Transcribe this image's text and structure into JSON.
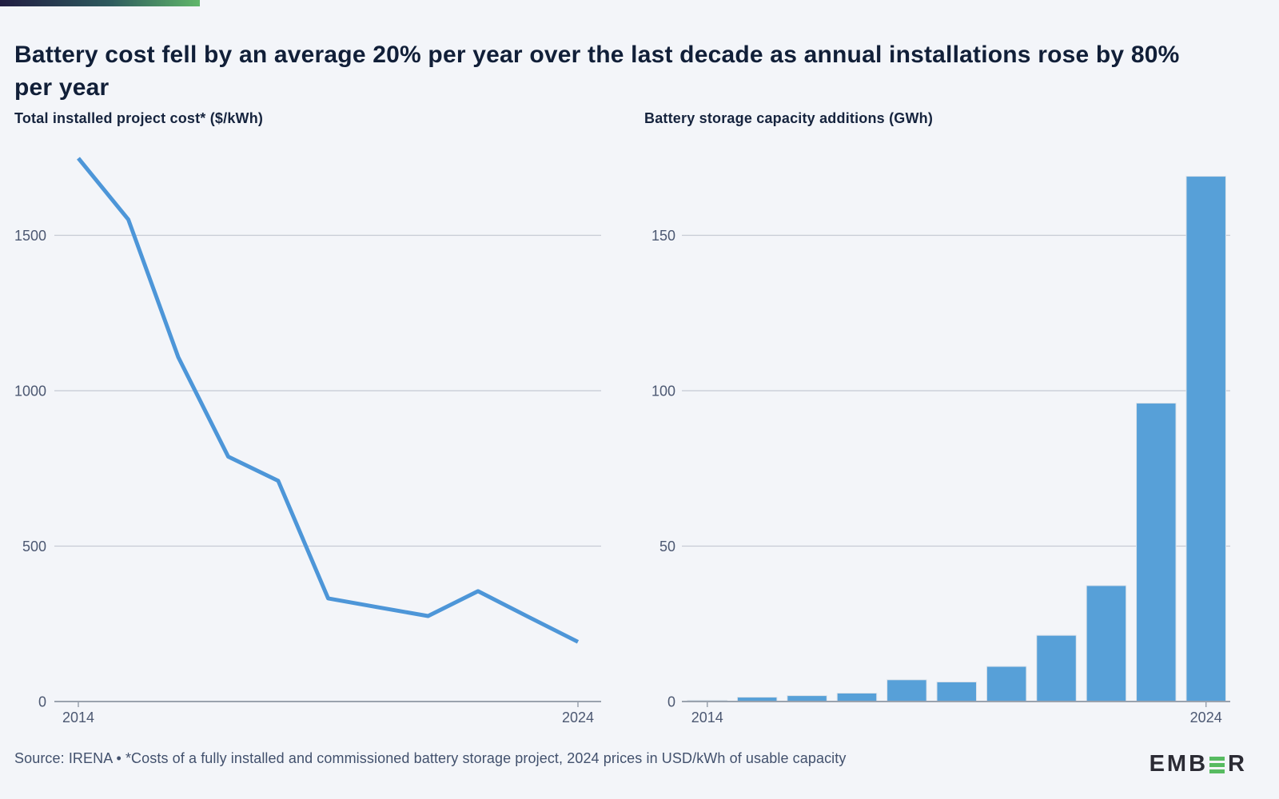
{
  "page": {
    "background": "#f3f5f9",
    "accent_bar_colors": [
      "#211d42",
      "#2e5a5e",
      "#60b76a"
    ]
  },
  "header": {
    "title": "Battery cost fell by an average 20% per year over the last decade as annual installations rose by 80% per year"
  },
  "chart_data": [
    {
      "type": "line",
      "title": "Total installed project cost* ($/kWh)",
      "x": [
        2014,
        2015,
        2016,
        2017,
        2018,
        2019,
        2020,
        2021,
        2022,
        2023,
        2024
      ],
      "values": [
        1748,
        1551,
        1108,
        788,
        710,
        332,
        303,
        275,
        355,
        273,
        192
      ],
      "xlabel": "",
      "ylabel": "$/kWh",
      "ylim": [
        0,
        1800
      ],
      "yticks": [
        0,
        500,
        1000,
        1500
      ],
      "xtick_labels": [
        "2014",
        "2024"
      ],
      "line_color": "#4d96d8",
      "grid": true,
      "legend": "none"
    },
    {
      "type": "bar",
      "title": "Battery storage capacity additions (GWh)",
      "categories": [
        2014,
        2015,
        2016,
        2017,
        2018,
        2019,
        2020,
        2021,
        2022,
        2023,
        2024
      ],
      "values": [
        0.4,
        1.4,
        1.9,
        2.7,
        7.0,
        6.3,
        11.3,
        21.3,
        37.3,
        96,
        169
      ],
      "xlabel": "",
      "ylabel": "GWh",
      "ylim": [
        0,
        175
      ],
      "yticks": [
        0,
        50,
        100,
        150
      ],
      "xtick_labels": [
        "2014",
        "2024"
      ],
      "bar_color": "#57a0d8",
      "grid": true,
      "legend": "none"
    }
  ],
  "footer": {
    "source": "Source: IRENA • *Costs of a fully installed and commissioned battery storage project, 2024 prices in USD/kWh of usable capacity",
    "logo": {
      "prefix": "EMB",
      "green_e_icon": "three-green-bars-E",
      "suffix": "R"
    }
  }
}
